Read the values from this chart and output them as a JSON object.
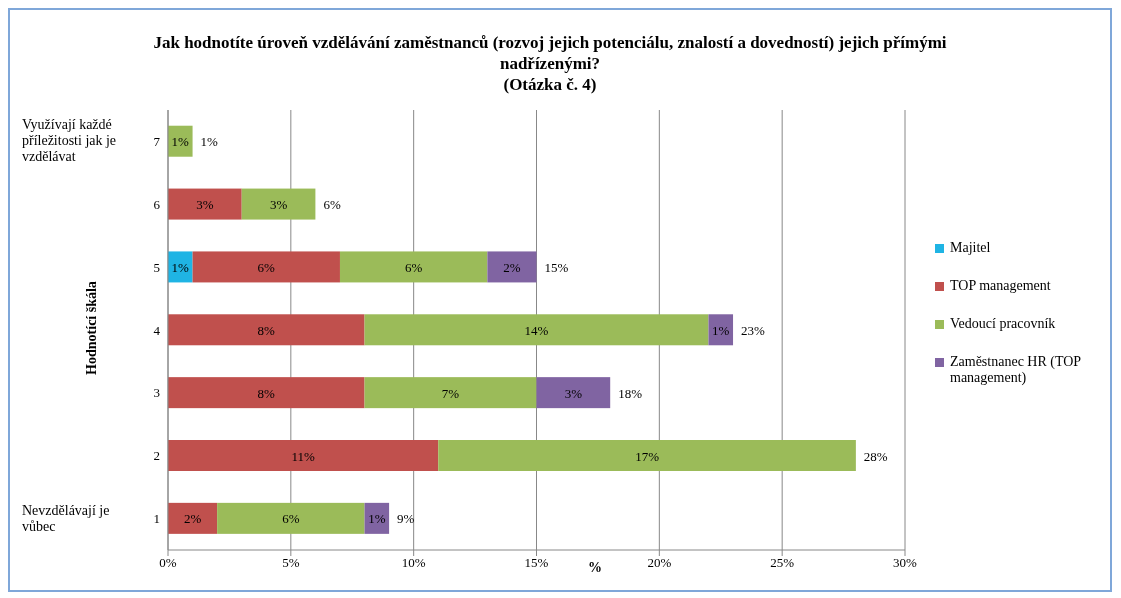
{
  "chart_data": {
    "type": "bar",
    "orientation": "horizontal",
    "stacked": true,
    "title": "Jak hodnotíte úroveň vzdělávání zaměstnanců (rozvoj jejich potenciálu, znalostí a dovedností) jejich přímými nadřízenými?\n(Otázka č. 4)",
    "xlabel": "%",
    "ylabel": "Hodnotící škála",
    "categories": [
      "7",
      "6",
      "5",
      "4",
      "3",
      "2",
      "1"
    ],
    "series": [
      {
        "name": "Majitel",
        "color": "#1fb4e4",
        "values": [
          null,
          null,
          1,
          null,
          null,
          null,
          null
        ],
        "value_labels": [
          null,
          null,
          "1%",
          null,
          null,
          null,
          null
        ]
      },
      {
        "name": "TOP management",
        "color": "#c0504d",
        "values": [
          null,
          3,
          6,
          8,
          8,
          11,
          2
        ],
        "value_labels": [
          null,
          "3%",
          "6%",
          "8%",
          "8%",
          "11%",
          "2%"
        ]
      },
      {
        "name": "Vedoucí pracovník",
        "color": "#9bbb59",
        "values": [
          1,
          3,
          6,
          14,
          7,
          17,
          6
        ],
        "value_labels": [
          "1%",
          "3%",
          "6%",
          "14%",
          "7%",
          "17%",
          "6%"
        ]
      },
      {
        "name": "Zaměstnanec HR (TOP management)",
        "color": "#8064a2",
        "values": [
          null,
          null,
          2,
          1,
          3,
          null,
          1
        ],
        "value_labels": [
          null,
          null,
          "2%",
          "1%",
          "3%",
          null,
          "1%"
        ]
      }
    ],
    "totals": [
      "1%",
      "6%",
      "15%",
      "23%",
      "18%",
      "28%",
      "9%"
    ],
    "xlim": [
      0,
      30
    ],
    "xticks": [
      {
        "value": 0,
        "label": "0%"
      },
      {
        "value": 5,
        "label": "5%"
      },
      {
        "value": 10,
        "label": "10%"
      },
      {
        "value": 15,
        "label": "15%"
      },
      {
        "value": 20,
        "label": "20%"
      },
      {
        "value": 25,
        "label": "25%"
      },
      {
        "value": 30,
        "label": "30%"
      }
    ],
    "grid": "x",
    "legend": "right",
    "annotations": [
      "Využívají každé příležitosti jak je vzdělávat",
      "Nevzdělávají je vůbec"
    ]
  }
}
